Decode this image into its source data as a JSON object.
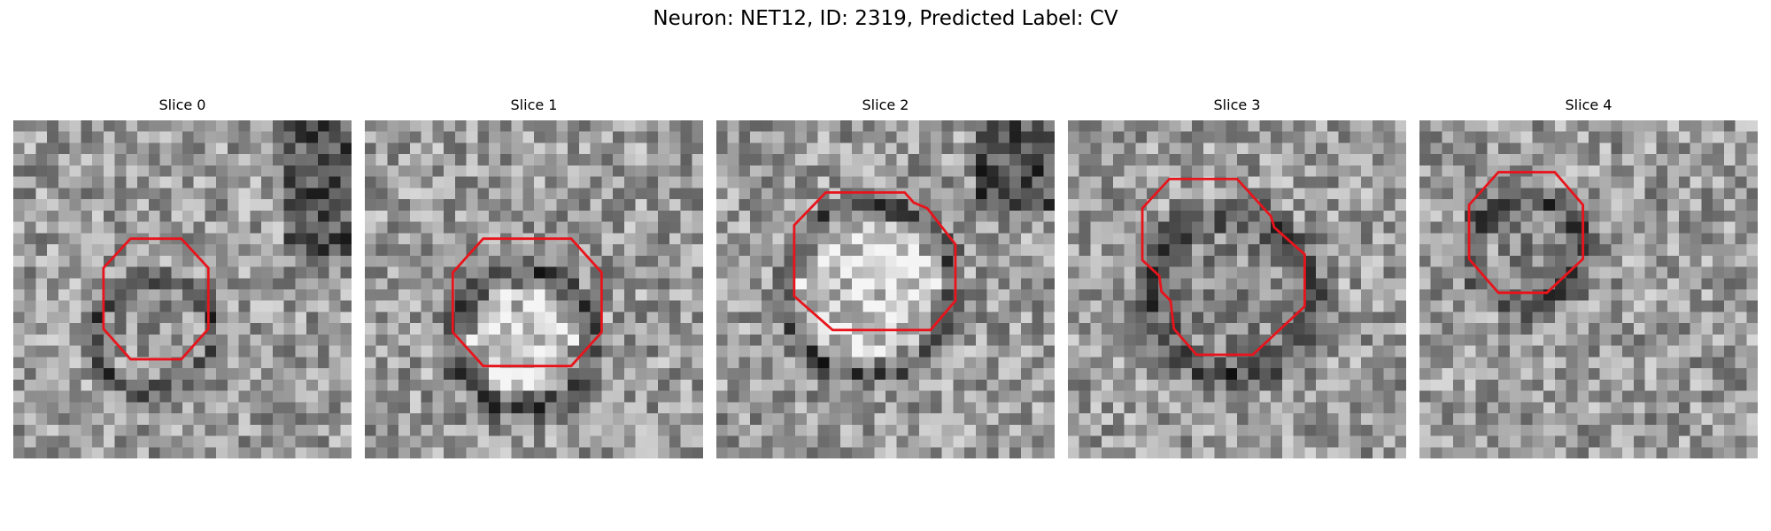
{
  "figure": {
    "title": "Neuron: NET12, ID: 2319, Predicted Label: CV"
  },
  "panels": [
    {
      "label": "Slice 0",
      "ring": "dark",
      "seed": 11
    },
    {
      "label": "Slice 1",
      "ring": "dark",
      "seed": 23
    },
    {
      "label": "Slice 2",
      "ring": "dark",
      "seed": 37
    },
    {
      "label": "Slice 3",
      "ring": "dark",
      "seed": 53
    },
    {
      "label": "Slice 4",
      "ring": "dark",
      "seed": 71
    }
  ],
  "colors": {
    "contour": "#e8141c",
    "background": "#ffffff"
  }
}
